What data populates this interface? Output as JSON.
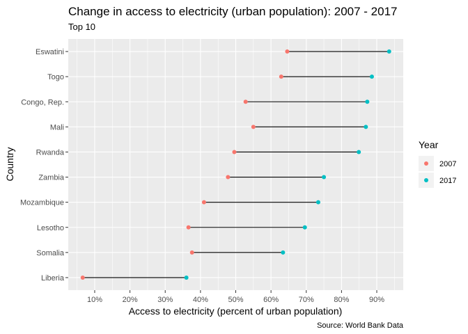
{
  "chart_data": {
    "type": "dumbbell",
    "title": "Change in access to electricity (urban population): 2007 - 2017",
    "subtitle": "Top 10",
    "xlabel": "Access to electricity (percent of urban population)",
    "ylabel": "Country",
    "caption": "Source: World Bank Data",
    "xlim": [
      2.5,
      97.5
    ],
    "x_ticks": [
      10,
      20,
      30,
      40,
      50,
      60,
      70,
      80,
      90
    ],
    "x_tick_labels": [
      "10%",
      "20%",
      "30%",
      "40%",
      "50%",
      "60%",
      "70%",
      "80%",
      "90%"
    ],
    "categories": [
      "Eswatini",
      "Togo",
      "Congo, Rep.",
      "Mali",
      "Rwanda",
      "Zambia",
      "Mozambique",
      "Lesotho",
      "Somalia",
      "Liberia"
    ],
    "series": [
      {
        "name": "2007",
        "color": "#f8766d",
        "values": [
          64.6,
          62.9,
          52.8,
          55.0,
          49.6,
          47.8,
          41.0,
          36.6,
          37.6,
          6.6
        ]
      },
      {
        "name": "2017",
        "color": "#00bfc4",
        "values": [
          93.5,
          88.6,
          87.3,
          86.9,
          84.9,
          75.0,
          73.4,
          69.6,
          63.4,
          36.0
        ]
      }
    ],
    "legend": {
      "title": "Year",
      "placement": "right"
    },
    "grid": true,
    "panel_background": "#ebebeb"
  }
}
